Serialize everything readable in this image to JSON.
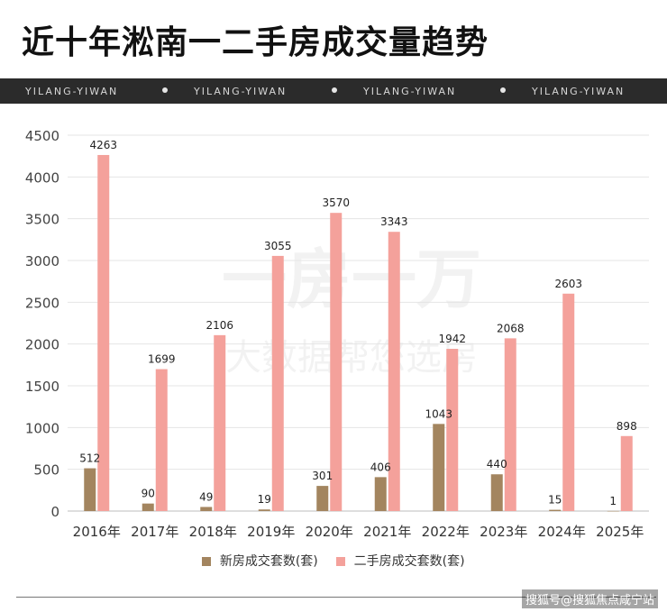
{
  "title": "近十年淞南一二手房成交量趋势",
  "banner": {
    "text": "YILANG-YIWAN",
    "repeat": 4
  },
  "watermark": {
    "line1": "一房一万",
    "line2": "大数据帮您选房"
  },
  "credit": "搜狐号@搜狐焦点咸宁站",
  "chart_data": {
    "type": "bar",
    "categories": [
      "2016年",
      "2017年",
      "2018年",
      "2019年",
      "2020年",
      "2021年",
      "2022年",
      "2023年",
      "2024年",
      "2025年"
    ],
    "series": [
      {
        "name": "新房成交套数(套)",
        "color": "#a3855f",
        "values": [
          512,
          90,
          49,
          19,
          301,
          406,
          1043,
          440,
          15,
          1
        ]
      },
      {
        "name": "二手房成交套数(套)",
        "color": "#f4a19b",
        "values": [
          4263,
          1699,
          2106,
          3055,
          3570,
          3343,
          1942,
          2068,
          2603,
          898
        ]
      }
    ],
    "y_ticks": [
      0,
      500,
      1000,
      1500,
      2000,
      2500,
      3000,
      3500,
      4000,
      4500
    ],
    "ylim": [
      0,
      4500
    ],
    "grid": true,
    "legend_position": "bottom",
    "data_labels": true
  }
}
